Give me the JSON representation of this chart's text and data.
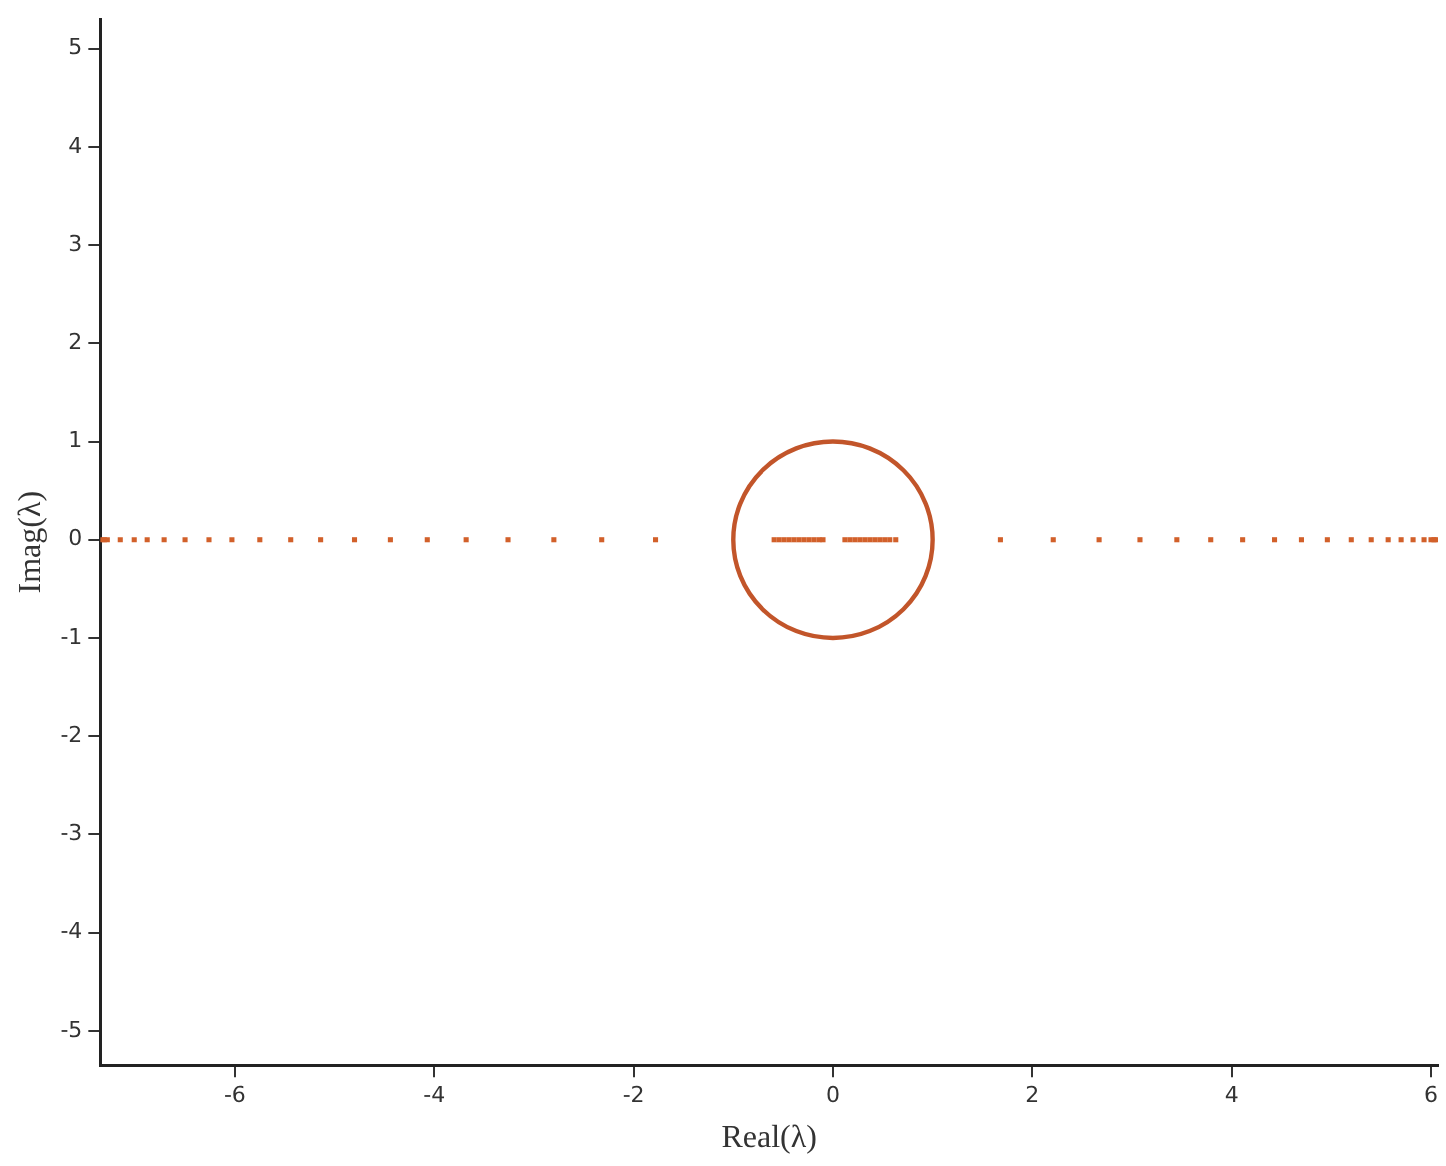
{
  "chart_data": {
    "type": "scatter",
    "xlabel": "Real(λ)",
    "ylabel": "Imag(λ)",
    "xlim": [
      -7.35,
      6.07
    ],
    "ylim": [
      -5.35,
      5.3
    ],
    "xticks": [
      -6,
      -4,
      -2,
      0,
      2,
      4,
      6
    ],
    "yticks": [
      -5,
      -4,
      -3,
      -2,
      -1,
      0,
      1,
      2,
      3,
      4,
      5
    ],
    "grid": false,
    "legend": false,
    "marker": "square",
    "series": [
      {
        "type": "scatter",
        "color": "#d2602a",
        "x": [
          -7.33,
          -7.31,
          -7.28,
          -7.15,
          -7.01,
          -6.88,
          -6.71,
          -6.5,
          -6.26,
          -6.03,
          -5.75,
          -5.44,
          -5.14,
          -4.8,
          -4.44,
          -4.07,
          -3.68,
          -3.26,
          -2.8,
          -2.32,
          -1.78,
          -0.59,
          -0.54,
          -0.49,
          -0.44,
          -0.39,
          -0.34,
          -0.29,
          -0.24,
          -0.19,
          -0.14,
          -0.1,
          0.12,
          0.17,
          0.22,
          0.27,
          0.32,
          0.37,
          0.42,
          0.47,
          0.52,
          0.57,
          0.63,
          1.68,
          2.21,
          2.67,
          3.08,
          3.45,
          3.79,
          4.11,
          4.43,
          4.7,
          4.96,
          5.2,
          5.4,
          5.57,
          5.7,
          5.82,
          5.93,
          6.0,
          6.03,
          6.05
        ],
        "values": [
          0,
          0,
          0,
          0,
          0,
          0,
          0,
          0,
          0,
          0,
          0,
          0,
          0,
          0,
          0,
          0,
          0,
          0,
          0,
          0,
          0,
          0,
          0,
          0,
          0,
          0,
          0,
          0,
          0,
          0,
          0,
          0,
          0,
          0,
          0,
          0,
          0,
          0,
          0,
          0,
          0,
          0,
          0,
          0,
          0,
          0,
          0,
          0,
          0,
          0,
          0,
          0,
          0,
          0,
          0,
          0,
          0,
          0,
          0,
          0,
          0,
          0
        ]
      }
    ]
  }
}
